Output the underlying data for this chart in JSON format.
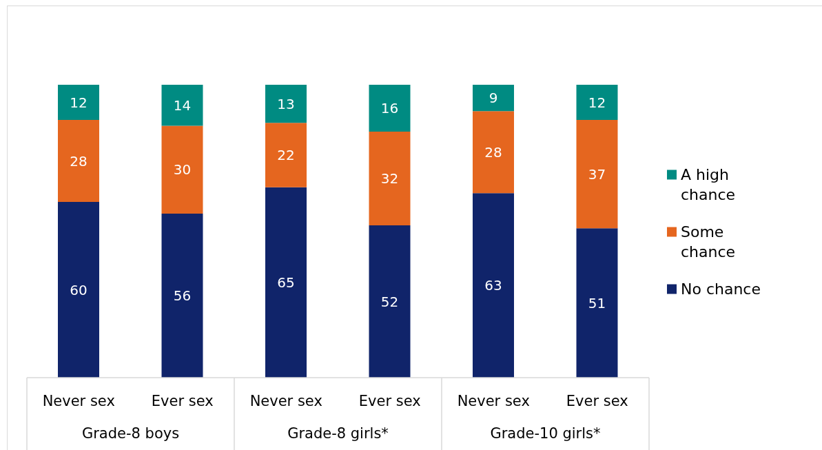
{
  "chart_data": {
    "type": "bar",
    "stacked": true,
    "data_labels": true,
    "legend": "right",
    "tick_labels": "x",
    "categories": [
      "Never sex",
      "Ever sex",
      "Never sex",
      "Ever sex",
      "Never sex",
      "Ever sex"
    ],
    "series": [
      {
        "name": "No chance",
        "color": "#10246a",
        "values": [
          60,
          56,
          65,
          52,
          63,
          51
        ]
      },
      {
        "name": "Some chance",
        "color": "#e5661f",
        "values": [
          28,
          30,
          22,
          32,
          28,
          37
        ]
      },
      {
        "name": "A high chance",
        "color": "#008b82",
        "values": [
          12,
          14,
          13,
          16,
          9,
          12
        ]
      }
    ],
    "annotations": [
      "Grade-8 boys",
      "Grade-8 girls*",
      "Grade-10 girls*"
    ]
  }
}
